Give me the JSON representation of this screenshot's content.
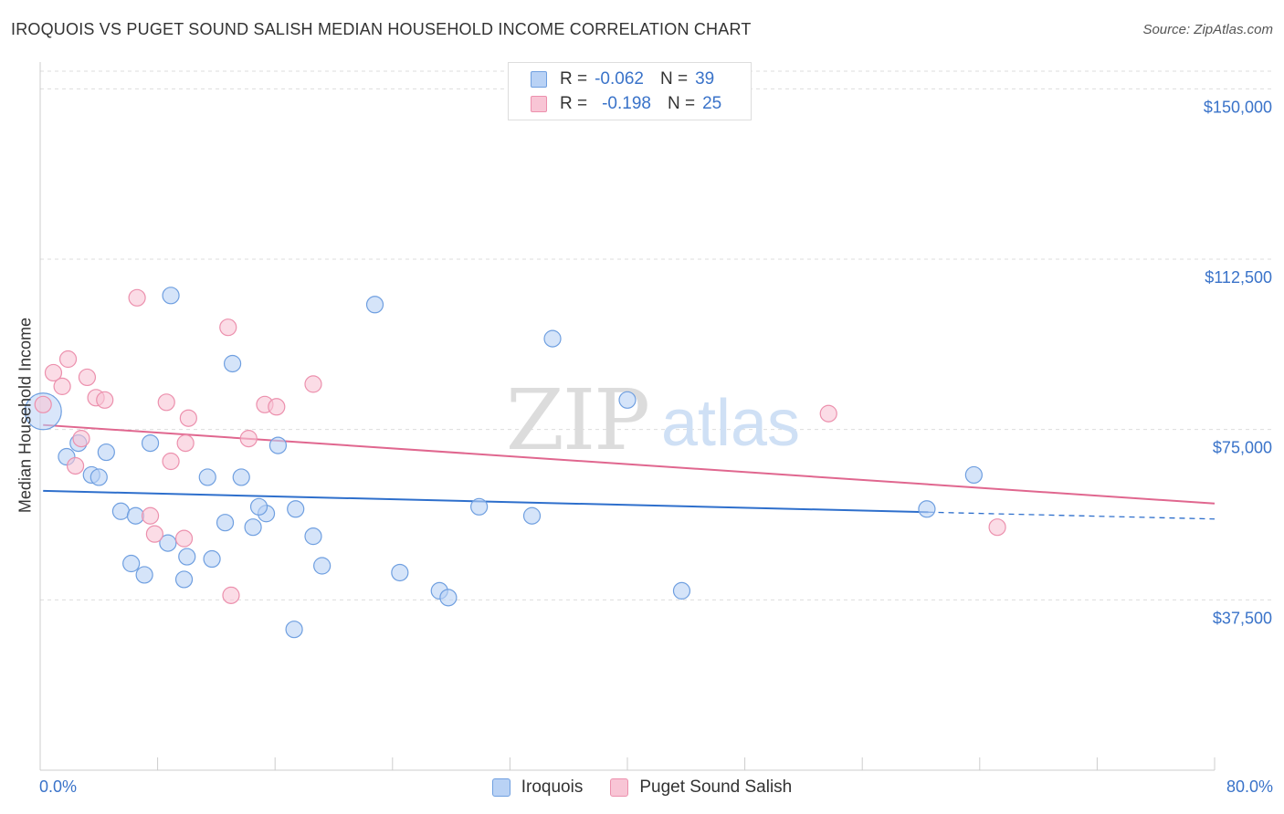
{
  "chart_data": {
    "type": "scatter",
    "title": "IROQUOIS VS PUGET SOUND SALISH MEDIAN HOUSEHOLD INCOME CORRELATION CHART",
    "source": "Source: ZipAtlas.com",
    "xlabel": "",
    "ylabel": "Median Household Income",
    "xlim": [
      0,
      80
    ],
    "ylim": [
      0,
      157500
    ],
    "x_tick_labels": {
      "min": "0.0%",
      "max": "80.0%"
    },
    "y_ticks": [
      {
        "value": 37500,
        "label": "$37,500"
      },
      {
        "value": 75000,
        "label": "$75,000"
      },
      {
        "value": 112500,
        "label": "$112,500"
      },
      {
        "value": 150000,
        "label": "$150,000"
      }
    ],
    "watermark": {
      "zip": "ZIP",
      "atlas": "atlas"
    },
    "series": [
      {
        "name": "Iroquois",
        "color": "#6f9fe0",
        "fill": "#b9d2f5",
        "line_color": "#2e6fcc",
        "R_label": "R =",
        "R": "-0.062",
        "N_label": "N =",
        "N": "39",
        "trend": {
          "x0": 0.2,
          "y0": 61500,
          "x1": 60.5,
          "y1": 56800,
          "dash_x1": 80,
          "dash_y1": 55300
        },
        "points": [
          [
            0.2,
            79000
          ],
          [
            1.8,
            69000
          ],
          [
            2.6,
            72000
          ],
          [
            3.5,
            65000
          ],
          [
            4.5,
            70000
          ],
          [
            4.0,
            64500
          ],
          [
            5.5,
            57000
          ],
          [
            6.5,
            56000
          ],
          [
            6.2,
            45500
          ],
          [
            7.1,
            43000
          ],
          [
            7.5,
            72000
          ],
          [
            8.9,
            104500
          ],
          [
            8.7,
            50000
          ],
          [
            9.8,
            42000
          ],
          [
            10.0,
            47000
          ],
          [
            11.4,
            64500
          ],
          [
            11.7,
            46500
          ],
          [
            12.6,
            54500
          ],
          [
            13.1,
            89500
          ],
          [
            13.7,
            64500
          ],
          [
            14.5,
            53500
          ],
          [
            15.4,
            56500
          ],
          [
            14.9,
            58000
          ],
          [
            16.2,
            71500
          ],
          [
            17.4,
            57500
          ],
          [
            17.3,
            31000
          ],
          [
            18.6,
            51500
          ],
          [
            19.2,
            45000
          ],
          [
            22.8,
            102500
          ],
          [
            24.5,
            43500
          ],
          [
            27.2,
            39500
          ],
          [
            27.8,
            38000
          ],
          [
            29.9,
            58000
          ],
          [
            33.5,
            56000
          ],
          [
            34.9,
            95000
          ],
          [
            40.0,
            81500
          ],
          [
            63.6,
            65000
          ],
          [
            43.7,
            39500
          ],
          [
            60.4,
            57500
          ]
        ]
      },
      {
        "name": "Puget Sound Salish",
        "color": "#ec90ad",
        "fill": "#f8c5d5",
        "line_color": "#e0678f",
        "R_label": "R =",
        "R": "-0.198",
        "N_label": "N =",
        "N": "25",
        "trend": {
          "x0": 0.2,
          "y0": 76000,
          "x1": 80,
          "y1": 58700
        },
        "points": [
          [
            0.2,
            80500
          ],
          [
            0.9,
            87500
          ],
          [
            1.5,
            84500
          ],
          [
            1.9,
            90500
          ],
          [
            2.8,
            73000
          ],
          [
            2.4,
            67000
          ],
          [
            3.2,
            86500
          ],
          [
            3.8,
            82000
          ],
          [
            4.4,
            81500
          ],
          [
            6.6,
            104000
          ],
          [
            7.5,
            56000
          ],
          [
            7.8,
            52000
          ],
          [
            8.6,
            81000
          ],
          [
            8.9,
            68000
          ],
          [
            9.8,
            51000
          ],
          [
            9.9,
            72000
          ],
          [
            10.1,
            77500
          ],
          [
            12.8,
            97500
          ],
          [
            13.0,
            38500
          ],
          [
            14.2,
            73000
          ],
          [
            15.3,
            80500
          ],
          [
            16.1,
            80000
          ],
          [
            18.6,
            85000
          ],
          [
            53.7,
            78500
          ],
          [
            65.2,
            53500
          ]
        ]
      }
    ]
  }
}
